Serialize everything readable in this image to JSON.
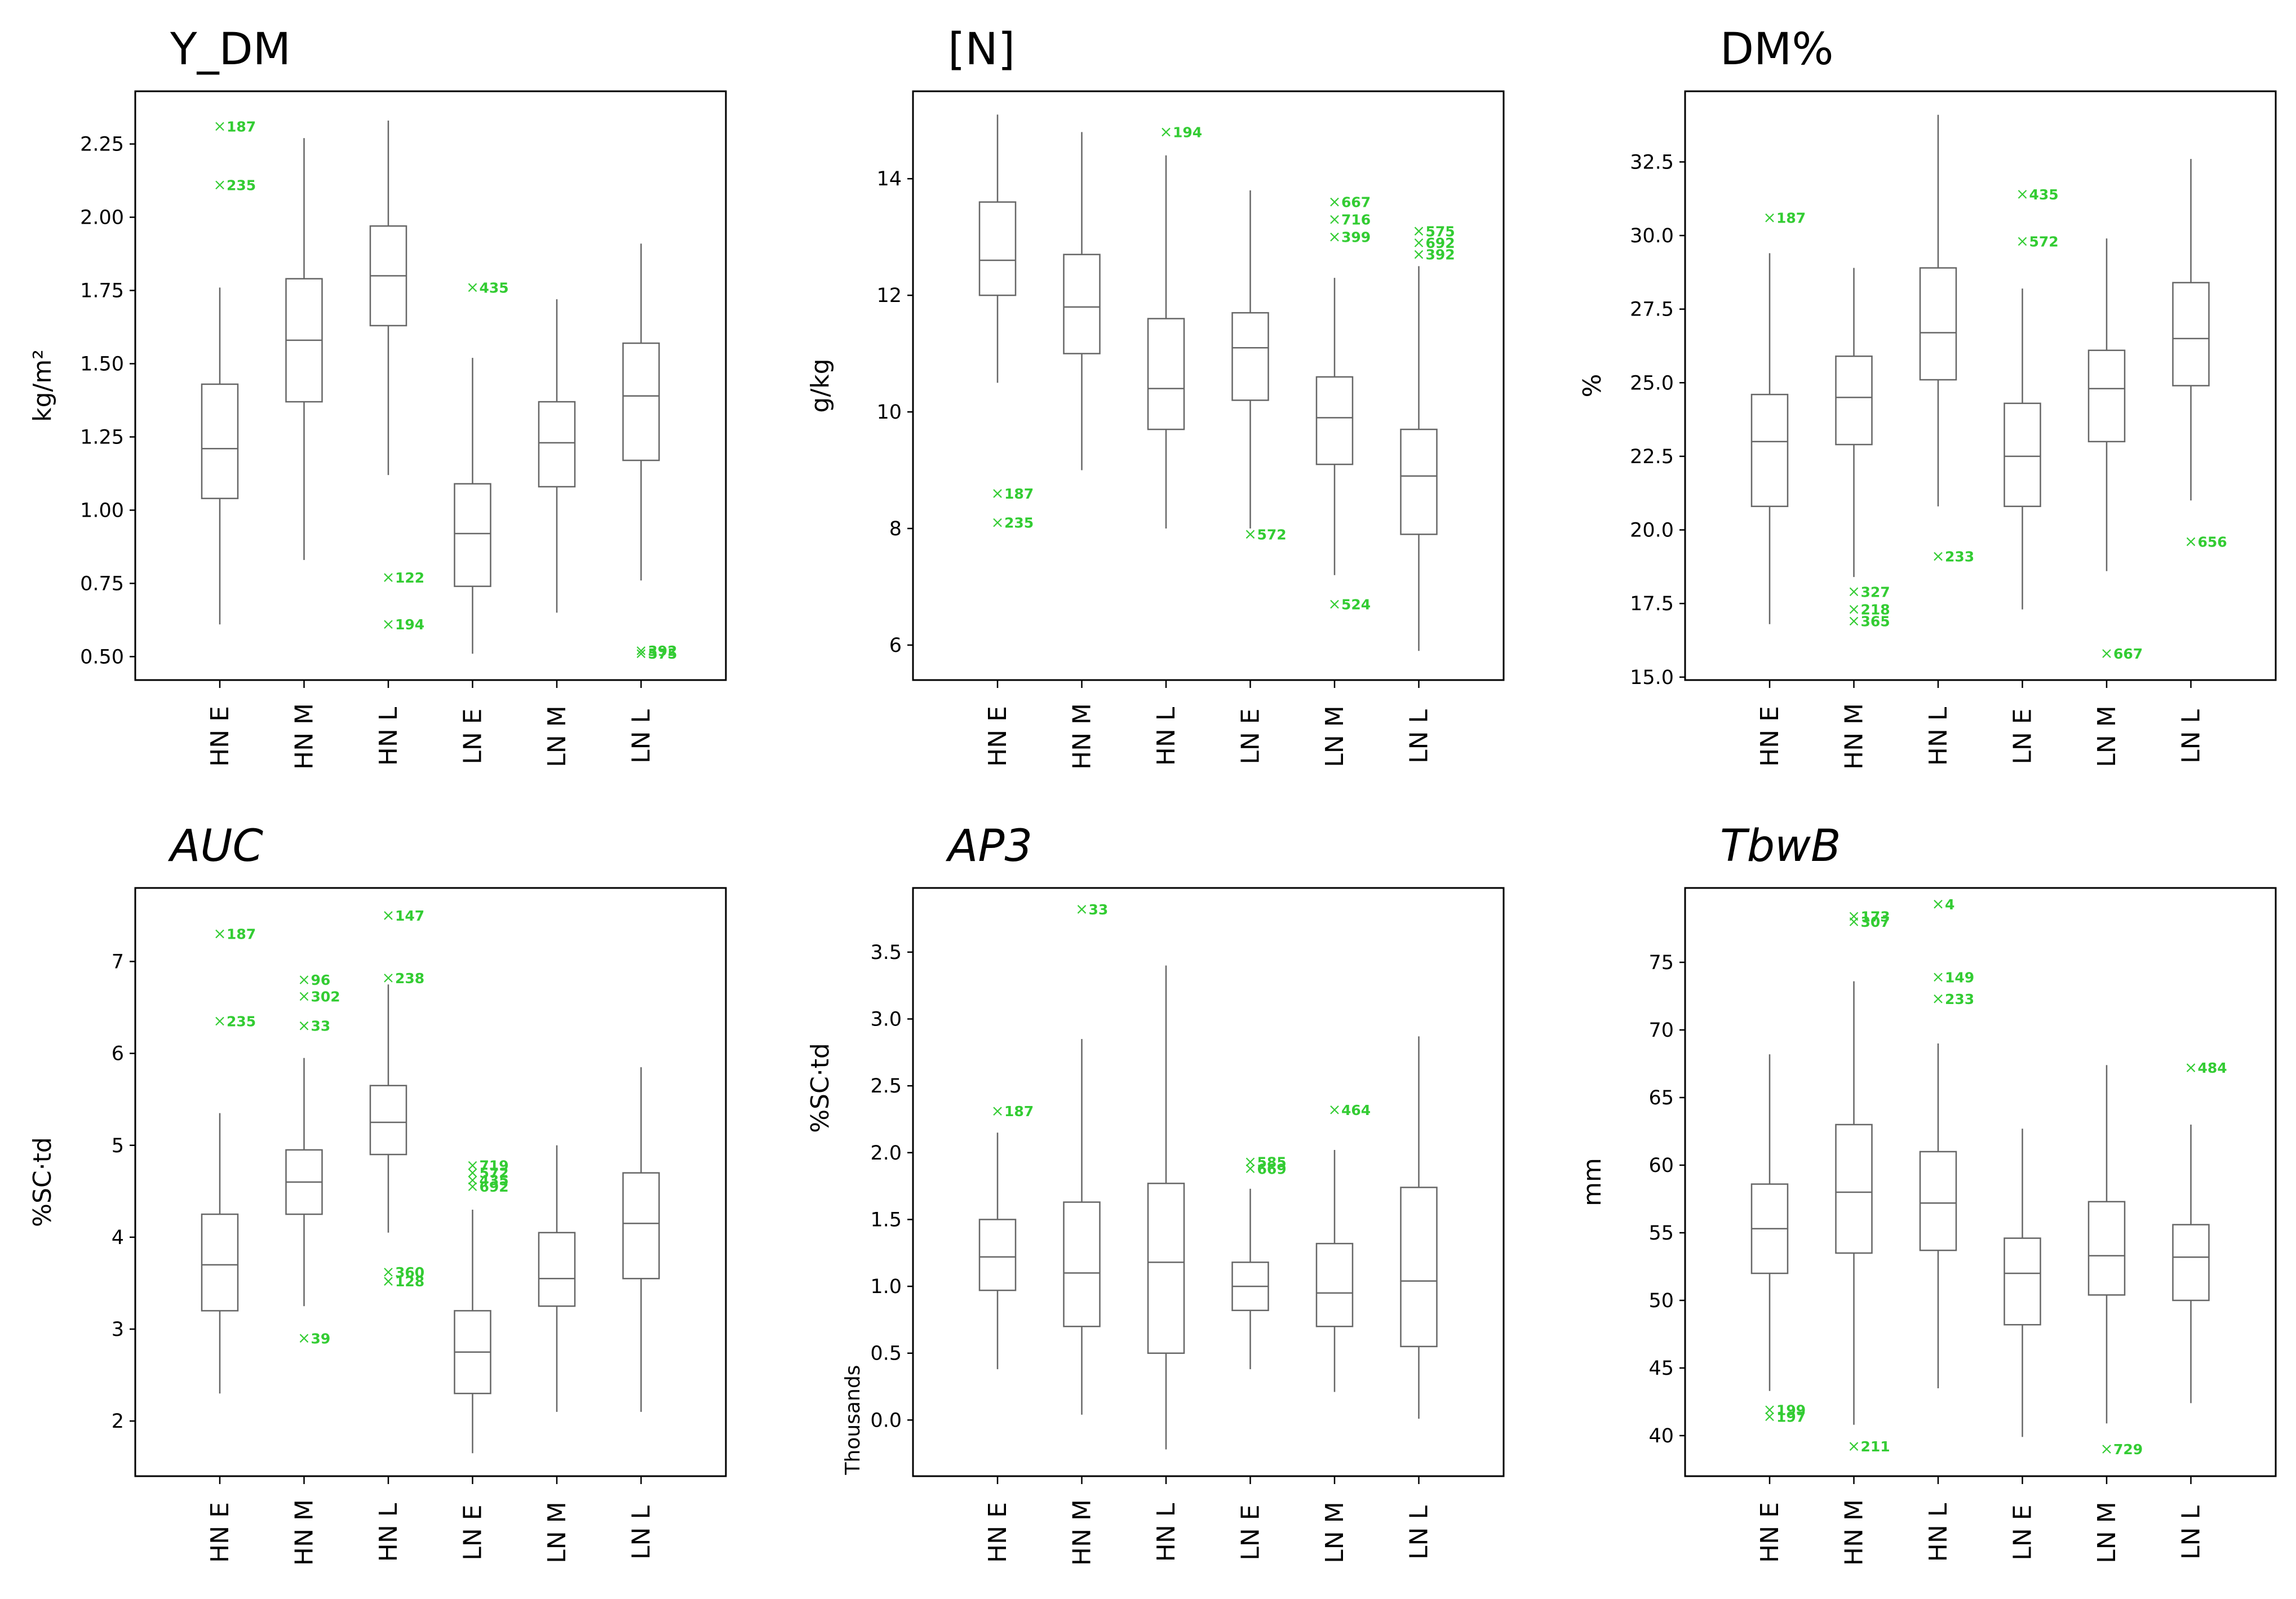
{
  "chart_data": [
    {
      "type": "box",
      "title": "Y_DM",
      "title_italic": false,
      "ylabel": "kg/m²",
      "ylim": [
        0.42,
        2.43
      ],
      "yticks": [
        0.5,
        0.75,
        1.0,
        1.25,
        1.5,
        1.75,
        2.0,
        2.25
      ],
      "ytick_labels": [
        "0.50",
        "0.75",
        "1.00",
        "1.25",
        "1.50",
        "1.75",
        "2.00",
        "2.25"
      ],
      "categories": [
        "HN E",
        "HN M",
        "HN L",
        "LN E",
        "LN M",
        "LN L"
      ],
      "boxes": [
        {
          "whisker_low": 0.61,
          "q1": 1.04,
          "median": 1.21,
          "q3": 1.43,
          "whisker_high": 1.76
        },
        {
          "whisker_low": 0.83,
          "q1": 1.37,
          "median": 1.58,
          "q3": 1.79,
          "whisker_high": 2.27
        },
        {
          "whisker_low": 1.12,
          "q1": 1.63,
          "median": 1.8,
          "q3": 1.97,
          "whisker_high": 2.33
        },
        {
          "whisker_low": 0.51,
          "q1": 0.74,
          "median": 0.92,
          "q3": 1.09,
          "whisker_high": 1.52
        },
        {
          "whisker_low": 0.65,
          "q1": 1.08,
          "median": 1.23,
          "q3": 1.37,
          "whisker_high": 1.72
        },
        {
          "whisker_low": 0.76,
          "q1": 1.17,
          "median": 1.39,
          "q3": 1.57,
          "whisker_high": 1.91
        }
      ],
      "outliers": [
        {
          "category": 0,
          "value": 2.31,
          "label": "187"
        },
        {
          "category": 0,
          "value": 2.11,
          "label": "235"
        },
        {
          "category": 2,
          "value": 0.77,
          "label": "122"
        },
        {
          "category": 2,
          "value": 0.61,
          "label": "194"
        },
        {
          "category": 3,
          "value": 1.76,
          "label": "435"
        },
        {
          "category": 5,
          "value": 0.52,
          "label": "392"
        },
        {
          "category": 5,
          "value": 0.51,
          "label": "575"
        }
      ]
    },
    {
      "type": "box",
      "title": "[N]",
      "title_italic": false,
      "ylabel": "g/kg",
      "ylim": [
        5.4,
        15.5
      ],
      "yticks": [
        6,
        8,
        10,
        12,
        14
      ],
      "ytick_labels": [
        "6",
        "8",
        "10",
        "12",
        "14"
      ],
      "categories": [
        "HN E",
        "HN M",
        "HN L",
        "LN E",
        "LN M",
        "LN L"
      ],
      "boxes": [
        {
          "whisker_low": 10.5,
          "q1": 12.0,
          "median": 12.6,
          "q3": 13.6,
          "whisker_high": 15.1
        },
        {
          "whisker_low": 9.0,
          "q1": 11.0,
          "median": 11.8,
          "q3": 12.7,
          "whisker_high": 14.8
        },
        {
          "whisker_low": 8.0,
          "q1": 9.7,
          "median": 10.4,
          "q3": 11.6,
          "whisker_high": 14.4
        },
        {
          "whisker_low": 8.0,
          "q1": 10.2,
          "median": 11.1,
          "q3": 11.7,
          "whisker_high": 13.8
        },
        {
          "whisker_low": 7.2,
          "q1": 9.1,
          "median": 9.9,
          "q3": 10.6,
          "whisker_high": 12.3
        },
        {
          "whisker_low": 5.9,
          "q1": 7.9,
          "median": 8.9,
          "q3": 9.7,
          "whisker_high": 12.5
        }
      ],
      "outliers": [
        {
          "category": 0,
          "value": 8.6,
          "label": "187"
        },
        {
          "category": 0,
          "value": 8.1,
          "label": "235"
        },
        {
          "category": 2,
          "value": 14.8,
          "label": "194"
        },
        {
          "category": 3,
          "value": 7.9,
          "label": "572"
        },
        {
          "category": 4,
          "value": 13.6,
          "label": "667"
        },
        {
          "category": 4,
          "value": 13.3,
          "label": "716"
        },
        {
          "category": 4,
          "value": 13.0,
          "label": "399"
        },
        {
          "category": 4,
          "value": 6.7,
          "label": "524"
        },
        {
          "category": 5,
          "value": 13.1,
          "label": "575"
        },
        {
          "category": 5,
          "value": 12.9,
          "label": "692"
        },
        {
          "category": 5,
          "value": 12.7,
          "label": "392"
        }
      ]
    },
    {
      "type": "box",
      "title": "DM%",
      "title_italic": false,
      "ylabel": "%",
      "ylim": [
        14.9,
        34.9
      ],
      "yticks": [
        15.0,
        17.5,
        20.0,
        22.5,
        25.0,
        27.5,
        30.0,
        32.5
      ],
      "ytick_labels": [
        "15.0",
        "17.5",
        "20.0",
        "22.5",
        "25.0",
        "27.5",
        "30.0",
        "32.5"
      ],
      "categories": [
        "HN E",
        "HN M",
        "HN L",
        "LN E",
        "LN M",
        "LN L"
      ],
      "boxes": [
        {
          "whisker_low": 16.8,
          "q1": 20.8,
          "median": 23.0,
          "q3": 24.6,
          "whisker_high": 29.4
        },
        {
          "whisker_low": 18.4,
          "q1": 22.9,
          "median": 24.5,
          "q3": 25.9,
          "whisker_high": 28.9
        },
        {
          "whisker_low": 20.8,
          "q1": 25.1,
          "median": 26.7,
          "q3": 28.9,
          "whisker_high": 34.1
        },
        {
          "whisker_low": 17.3,
          "q1": 20.8,
          "median": 22.5,
          "q3": 24.3,
          "whisker_high": 28.2
        },
        {
          "whisker_low": 18.6,
          "q1": 23.0,
          "median": 24.8,
          "q3": 26.1,
          "whisker_high": 29.9
        },
        {
          "whisker_low": 21.0,
          "q1": 24.9,
          "median": 26.5,
          "q3": 28.4,
          "whisker_high": 32.6
        }
      ],
      "outliers": [
        {
          "category": 0,
          "value": 30.6,
          "label": "187"
        },
        {
          "category": 1,
          "value": 17.9,
          "label": "327"
        },
        {
          "category": 1,
          "value": 17.3,
          "label": "218"
        },
        {
          "category": 1,
          "value": 16.9,
          "label": "365"
        },
        {
          "category": 2,
          "value": 19.1,
          "label": "233"
        },
        {
          "category": 3,
          "value": 31.4,
          "label": "435"
        },
        {
          "category": 3,
          "value": 29.8,
          "label": "572"
        },
        {
          "category": 4,
          "value": 15.8,
          "label": "667"
        },
        {
          "category": 5,
          "value": 19.6,
          "label": "656"
        }
      ]
    },
    {
      "type": "box",
      "title": "AUC",
      "title_italic": true,
      "ylabel": "%SC·td",
      "ylim": [
        1.4,
        7.8
      ],
      "yticks": [
        2,
        3,
        4,
        5,
        6,
        7
      ],
      "ytick_labels": [
        "2",
        "3",
        "4",
        "5",
        "6",
        "7"
      ],
      "categories": [
        "HN E",
        "HN M",
        "HN L",
        "LN E",
        "LN M",
        "LN L"
      ],
      "boxes": [
        {
          "whisker_low": 2.3,
          "q1": 3.2,
          "median": 3.7,
          "q3": 4.25,
          "whisker_high": 5.35
        },
        {
          "whisker_low": 3.25,
          "q1": 4.25,
          "median": 4.6,
          "q3": 4.95,
          "whisker_high": 5.95
        },
        {
          "whisker_low": 4.05,
          "q1": 4.9,
          "median": 5.25,
          "q3": 5.65,
          "whisker_high": 6.75
        },
        {
          "whisker_low": 1.65,
          "q1": 2.3,
          "median": 2.75,
          "q3": 3.2,
          "whisker_high": 4.3
        },
        {
          "whisker_low": 2.1,
          "q1": 3.25,
          "median": 3.55,
          "q3": 4.05,
          "whisker_high": 5.0
        },
        {
          "whisker_low": 2.1,
          "q1": 3.55,
          "median": 4.15,
          "q3": 4.7,
          "whisker_high": 5.85
        }
      ],
      "outliers": [
        {
          "category": 0,
          "value": 7.3,
          "label": "187"
        },
        {
          "category": 0,
          "value": 6.35,
          "label": "235"
        },
        {
          "category": 1,
          "value": 6.8,
          "label": "96"
        },
        {
          "category": 1,
          "value": 6.62,
          "label": "302"
        },
        {
          "category": 1,
          "value": 6.3,
          "label": "33"
        },
        {
          "category": 1,
          "value": 2.9,
          "label": "39"
        },
        {
          "category": 2,
          "value": 7.5,
          "label": "147"
        },
        {
          "category": 2,
          "value": 6.82,
          "label": "238"
        },
        {
          "category": 2,
          "value": 3.62,
          "label": "360"
        },
        {
          "category": 2,
          "value": 3.52,
          "label": "128"
        },
        {
          "category": 3,
          "value": 4.78,
          "label": "719"
        },
        {
          "category": 3,
          "value": 4.7,
          "label": "572"
        },
        {
          "category": 3,
          "value": 4.62,
          "label": "435"
        },
        {
          "category": 3,
          "value": 4.55,
          "label": "692"
        }
      ]
    },
    {
      "type": "box",
      "title": "AP3",
      "title_italic": true,
      "ylabel": "%SC·td",
      "ylabel_secondary": "Thousands",
      "ylim": [
        -0.42,
        3.98
      ],
      "yticks": [
        0.0,
        0.5,
        1.0,
        1.5,
        2.0,
        2.5,
        3.0,
        3.5
      ],
      "ytick_labels": [
        "0.0",
        "0.5",
        "1.0",
        "1.5",
        "2.0",
        "2.5",
        "3.0",
        "3.5"
      ],
      "categories": [
        "HN E",
        "HN M",
        "HN L",
        "LN E",
        "LN M",
        "LN L"
      ],
      "boxes": [
        {
          "whisker_low": 0.38,
          "q1": 0.97,
          "median": 1.22,
          "q3": 1.5,
          "whisker_high": 2.15
        },
        {
          "whisker_low": 0.04,
          "q1": 0.7,
          "median": 1.1,
          "q3": 1.63,
          "whisker_high": 2.85
        },
        {
          "whisker_low": -0.22,
          "q1": 0.5,
          "median": 1.18,
          "q3": 1.77,
          "whisker_high": 3.4
        },
        {
          "whisker_low": 0.38,
          "q1": 0.82,
          "median": 1.0,
          "q3": 1.18,
          "whisker_high": 1.73
        },
        {
          "whisker_low": 0.21,
          "q1": 0.7,
          "median": 0.95,
          "q3": 1.32,
          "whisker_high": 2.02
        },
        {
          "whisker_low": 0.01,
          "q1": 0.55,
          "median": 1.04,
          "q3": 1.74,
          "whisker_high": 2.87
        }
      ],
      "outliers": [
        {
          "category": 0,
          "value": 2.31,
          "label": "187"
        },
        {
          "category": 1,
          "value": 3.82,
          "label": "33"
        },
        {
          "category": 3,
          "value": 1.93,
          "label": "585"
        },
        {
          "category": 3,
          "value": 1.88,
          "label": "669"
        },
        {
          "category": 4,
          "value": 2.32,
          "label": "464"
        }
      ]
    },
    {
      "type": "box",
      "title": "TbwB",
      "title_italic": true,
      "ylabel": "mm",
      "ylim": [
        37.0,
        80.5
      ],
      "yticks": [
        40,
        45,
        50,
        55,
        60,
        65,
        70,
        75
      ],
      "ytick_labels": [
        "40",
        "45",
        "50",
        "55",
        "60",
        "65",
        "70",
        "75"
      ],
      "categories": [
        "HN E",
        "HN M",
        "HN L",
        "LN E",
        "LN M",
        "LN L"
      ],
      "boxes": [
        {
          "whisker_low": 43.3,
          "q1": 52.0,
          "median": 55.3,
          "q3": 58.6,
          "whisker_high": 68.2
        },
        {
          "whisker_low": 40.8,
          "q1": 53.5,
          "median": 58.0,
          "q3": 63.0,
          "whisker_high": 73.6
        },
        {
          "whisker_low": 43.5,
          "q1": 53.7,
          "median": 57.2,
          "q3": 61.0,
          "whisker_high": 69.0
        },
        {
          "whisker_low": 39.9,
          "q1": 48.2,
          "median": 52.0,
          "q3": 54.6,
          "whisker_high": 62.7
        },
        {
          "whisker_low": 40.9,
          "q1": 50.4,
          "median": 53.3,
          "q3": 57.3,
          "whisker_high": 67.4
        },
        {
          "whisker_low": 42.4,
          "q1": 50.0,
          "median": 53.2,
          "q3": 55.6,
          "whisker_high": 63.0
        }
      ],
      "outliers": [
        {
          "category": 0,
          "value": 41.9,
          "label": "199"
        },
        {
          "category": 0,
          "value": 41.4,
          "label": "197"
        },
        {
          "category": 1,
          "value": 78.4,
          "label": "173"
        },
        {
          "category": 1,
          "value": 78.0,
          "label": "307"
        },
        {
          "category": 1,
          "value": 39.2,
          "label": "211"
        },
        {
          "category": 2,
          "value": 79.3,
          "label": "4"
        },
        {
          "category": 2,
          "value": 73.9,
          "label": "149"
        },
        {
          "category": 2,
          "value": 72.3,
          "label": "233"
        },
        {
          "category": 4,
          "value": 39.0,
          "label": "729"
        },
        {
          "category": 5,
          "value": 67.2,
          "label": "484"
        }
      ]
    }
  ],
  "colors": {
    "box_stroke": "#666666",
    "frame": "#000000",
    "outlier": "#33cc33"
  }
}
